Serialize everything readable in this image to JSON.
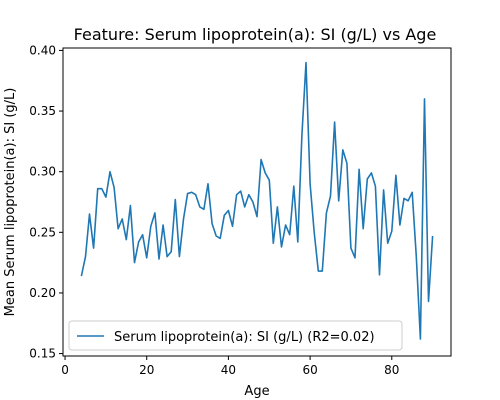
{
  "chart_data": {
    "type": "line",
    "title": "Feature: Serum lipoprotein(a):  SI (g/L) vs Age",
    "xlabel": "Age",
    "ylabel": "Mean Serum lipoprotein(a):  SI (g/L)",
    "xlim": [
      -0.5,
      94.5
    ],
    "ylim": [
      0.148,
      0.402
    ],
    "xticks": [
      0,
      20,
      40,
      60,
      80
    ],
    "yticks": [
      0.15,
      0.2,
      0.25,
      0.3,
      0.35,
      0.4
    ],
    "ytick_labels": [
      "0.15",
      "0.20",
      "0.25",
      "0.30",
      "0.35",
      "0.40"
    ],
    "grid": false,
    "legend_position": "lower-left",
    "series": [
      {
        "name": "Serum lipoprotein(a):  SI (g/L) (R2=0.02)",
        "color": "#1f77b4",
        "x": [
          4,
          5,
          6,
          7,
          8,
          9,
          10,
          11,
          12,
          13,
          14,
          15,
          16,
          17,
          18,
          19,
          20,
          21,
          22,
          23,
          24,
          25,
          26,
          27,
          28,
          29,
          30,
          31,
          32,
          33,
          34,
          35,
          36,
          37,
          38,
          39,
          40,
          41,
          42,
          43,
          44,
          45,
          46,
          47,
          48,
          49,
          50,
          51,
          52,
          53,
          54,
          55,
          56,
          57,
          58,
          59,
          60,
          61,
          62,
          63,
          64,
          65,
          66,
          67,
          68,
          69,
          70,
          71,
          72,
          73,
          74,
          75,
          76,
          77,
          78,
          79,
          80,
          81,
          82,
          83,
          84,
          85,
          86,
          87,
          88,
          89,
          90
        ],
        "y": [
          0.214,
          0.23,
          0.265,
          0.237,
          0.286,
          0.286,
          0.279,
          0.3,
          0.287,
          0.253,
          0.261,
          0.244,
          0.272,
          0.225,
          0.242,
          0.248,
          0.229,
          0.255,
          0.266,
          0.228,
          0.256,
          0.23,
          0.234,
          0.277,
          0.23,
          0.261,
          0.282,
          0.283,
          0.281,
          0.271,
          0.269,
          0.29,
          0.257,
          0.247,
          0.245,
          0.264,
          0.268,
          0.255,
          0.281,
          0.284,
          0.271,
          0.281,
          0.275,
          0.263,
          0.31,
          0.299,
          0.293,
          0.241,
          0.271,
          0.238,
          0.256,
          0.248,
          0.288,
          0.242,
          0.33,
          0.39,
          0.29,
          0.25,
          0.218,
          0.218,
          0.266,
          0.28,
          0.341,
          0.276,
          0.318,
          0.307,
          0.237,
          0.229,
          0.302,
          0.253,
          0.294,
          0.299,
          0.288,
          0.215,
          0.285,
          0.241,
          0.251,
          0.297,
          0.256,
          0.278,
          0.276,
          0.283,
          0.23,
          0.162,
          0.36,
          0.193,
          0.247
        ]
      }
    ]
  }
}
